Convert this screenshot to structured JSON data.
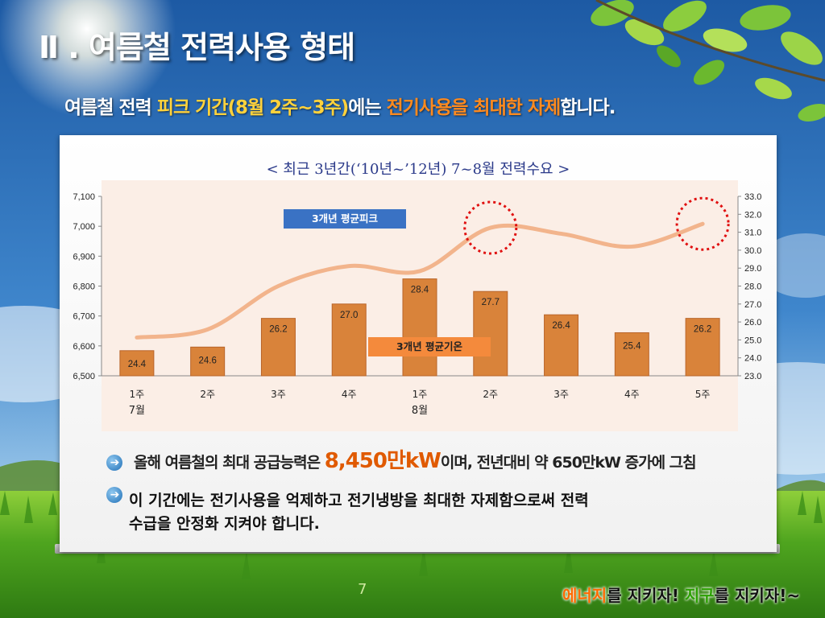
{
  "slide": {
    "title": "Ⅱ . 여름철 전력사용 형태",
    "subtitle_parts": [
      "여름철 전력 ",
      "피크 기간(8월 2주~3주)",
      "에는  ",
      "전기사용을 최대한 자제",
      "합니다."
    ],
    "page_number": "7",
    "slogan_parts": [
      "에너지",
      "를 지키자! ",
      "지구",
      "를 지키자!~"
    ]
  },
  "chart_data": {
    "type": "bar",
    "title": "< 최근 3년간(‘10년~’12년)  7~8월 전력수요 >",
    "categories": [
      "1주",
      "2주",
      "3주",
      "4주",
      "1주",
      "2주",
      "3주",
      "4주",
      "5주"
    ],
    "month_labels": [
      {
        "label": "7월",
        "at_index": 0
      },
      {
        "label": "8월",
        "at_index": 4
      }
    ],
    "series": [
      {
        "name": "3개년 평균기온",
        "type": "bar",
        "axis": "right",
        "color": "#d9833a",
        "values": [
          24.4,
          24.6,
          26.2,
          27.0,
          28.4,
          27.7,
          26.4,
          25.4,
          26.2
        ]
      },
      {
        "name": "3개년 평균피크",
        "type": "line",
        "axis": "left",
        "color": "#f2b48c",
        "values": [
          6628,
          6655,
          6800,
          6867,
          6850,
          6995,
          6975,
          6932,
          7008
        ]
      }
    ],
    "left_axis": {
      "ylim": [
        6500,
        7100
      ],
      "ticks": [
        "6,500",
        "6,600",
        "6,700",
        "6,800",
        "6,900",
        "7,000",
        "7,100"
      ]
    },
    "right_axis": {
      "ylim": [
        23.0,
        33.0
      ],
      "ticks": [
        "23.0",
        "24.0",
        "25.0",
        "26.0",
        "27.0",
        "28.0",
        "29.0",
        "30.0",
        "31.0",
        "32.0",
        "33.0"
      ]
    },
    "annotations": [
      "3개년 평균피크",
      "3개년 평균기온"
    ],
    "highlighted_indices": [
      5,
      8
    ],
    "colors": {
      "plot_bg": "#fbeee6",
      "label_box": "#3a72c4",
      "temp_box": "#f48a3c",
      "circle": "#e01010"
    }
  },
  "bullets": [
    {
      "parts": [
        "올해 여름철의 최대 공급능력은 ",
        "8,450만kW",
        "이며, 전년대비  약 650만kW 증가에 그침"
      ]
    },
    {
      "lines": [
        "이 기간에는 전기사용을 억제하고 전기냉방을 최대한 자제함으로써 전력",
        "수급을 안정화 지켜야 합니다."
      ]
    }
  ],
  "icons": [
    "arrow-right-circle-icon",
    "leaf-icon",
    "sun-glare-icon"
  ]
}
